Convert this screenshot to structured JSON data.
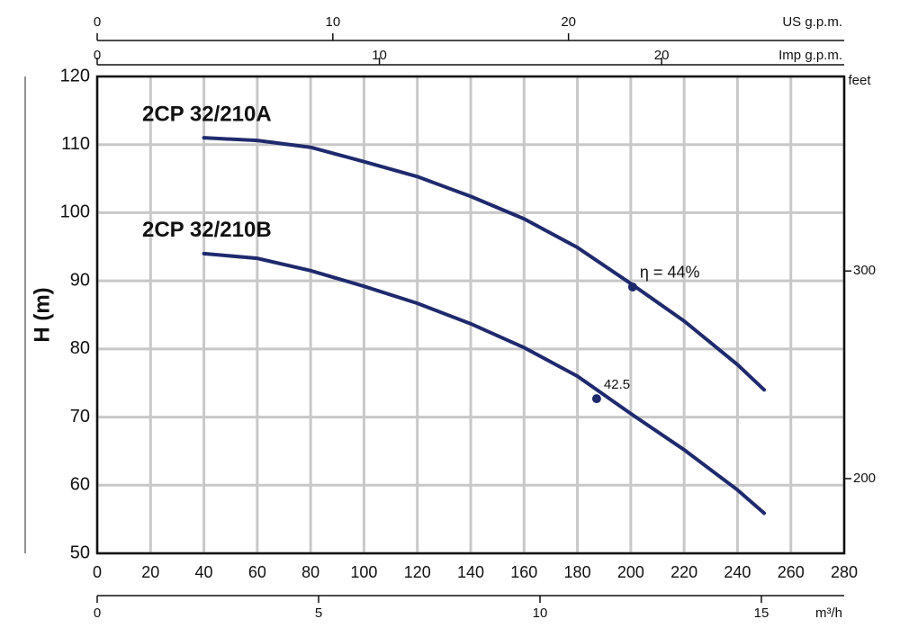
{
  "chart_data": {
    "type": "line",
    "xlim": [
      0,
      280
    ],
    "xticks": [
      0,
      20,
      40,
      60,
      80,
      100,
      120,
      140,
      160,
      180,
      200,
      220,
      240,
      260,
      280
    ],
    "ylim": [
      50,
      120
    ],
    "yticks": [
      50,
      60,
      70,
      80,
      90,
      100,
      110,
      120
    ],
    "ylabel": "H (m)",
    "y2label": "feet",
    "y2lim": [
      164,
      393.7
    ],
    "y2ticks": [
      200,
      300
    ],
    "grid": true,
    "top_axes": [
      {
        "label": "US g.p.m.",
        "xlim": [
          0,
          31.7
        ],
        "xticks": [
          0,
          10,
          20
        ]
      },
      {
        "label": "Imp g.p.m.",
        "xlim": [
          0,
          26.47
        ],
        "xticks": [
          0,
          10,
          20
        ]
      }
    ],
    "bottom_axis2": {
      "label": "m³/h",
      "xlim": [
        0,
        16.87
      ],
      "xticks": [
        0,
        5,
        10,
        15
      ]
    },
    "series": [
      {
        "name": "2CP 32/210A",
        "color": "#1f2a6e",
        "x": [
          40,
          60,
          80,
          100,
          120,
          140,
          160,
          180,
          200,
          220,
          240,
          250
        ],
        "y": [
          111,
          110.6,
          109.6,
          107.5,
          105.3,
          102.4,
          99.1,
          94.9,
          89.6,
          84.1,
          77.7,
          74
        ]
      },
      {
        "name": "2CP 32/210B",
        "color": "#1f2a6e",
        "x": [
          40,
          60,
          80,
          100,
          120,
          140,
          160,
          180,
          200,
          220,
          240,
          250
        ],
        "y": [
          94,
          93.3,
          91.5,
          89.2,
          86.7,
          83.7,
          80.2,
          76,
          70.5,
          65.2,
          59.3,
          55.9
        ]
      }
    ],
    "points": [
      {
        "label": "η = 44%",
        "x": 200.7,
        "y": 89.1
      },
      {
        "label": "42.5",
        "x": 187.2,
        "y": 72.7
      }
    ]
  }
}
